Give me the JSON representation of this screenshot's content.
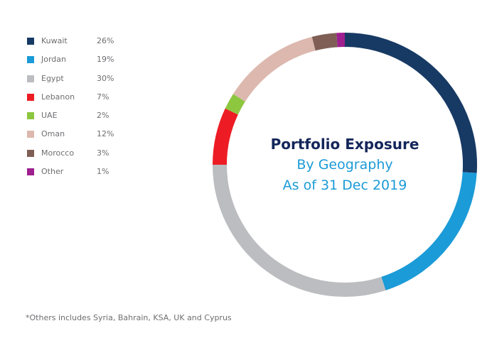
{
  "chart_data": {
    "type": "pie",
    "title": "Portfolio Exposure",
    "subtitle_lines": [
      "By Geography",
      "As of 31 Dec 2019"
    ],
    "categories": [
      "Kuwait",
      "Jordan",
      "Egypt",
      "Lebanon",
      "UAE",
      "Oman",
      "Morocco",
      "Other"
    ],
    "values": [
      26,
      19,
      30,
      7,
      2,
      12,
      3,
      1
    ],
    "value_labels": [
      "26%",
      "19%",
      "30%",
      "7%",
      "2%",
      "12%",
      "3%",
      "1%"
    ],
    "colors": [
      "#173a64",
      "#1b9bd7",
      "#bcbdc0",
      "#ed1c24",
      "#8dc63f",
      "#dcb8ae",
      "#7f5f55",
      "#9e1f8f"
    ],
    "legend_position": "left",
    "style": "donut"
  },
  "footnote": "*Others includes Syria, Bahrain, KSA, UK and Cyprus"
}
